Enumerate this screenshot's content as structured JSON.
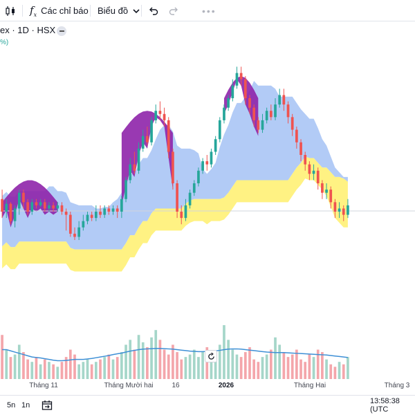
{
  "toolbar": {
    "indicators_label": "Các chỉ báo",
    "chart_type_label": "Biểu đồ"
  },
  "symbol": {
    "title": "ex · 1D · HSX",
    "change_fragment": "%)"
  },
  "time_axis": {
    "labels": [
      "Tháng 11",
      "Tháng Mười hai",
      "16",
      "2026",
      "Tháng Hai",
      "Tháng 3"
    ]
  },
  "bottom_bar": {
    "range_5n": "5n",
    "range_1n": "1n",
    "clock": "13:58:38 (UTC"
  },
  "colors": {
    "up": "#26a69a",
    "down": "#ef5350",
    "cloud_blue": "#a4c2f4",
    "cloud_yellow": "#fff176",
    "cloud_purple": "#8e24aa",
    "volume_up": "#a5d6c9",
    "volume_down": "#f4a6ab",
    "volume_ma": "#3d8fd6"
  },
  "chart_data": {
    "type": "candlestick",
    "grid": false,
    "candles": [
      [
        240,
        232,
        246,
        228
      ],
      [
        232,
        237,
        240,
        228
      ],
      [
        237,
        226,
        238,
        224
      ],
      [
        226,
        234,
        236,
        222
      ],
      [
        234,
        244,
        246,
        230
      ],
      [
        244,
        238,
        246,
        234
      ],
      [
        238,
        232,
        240,
        230
      ],
      [
        232,
        238,
        240,
        230
      ],
      [
        238,
        236,
        240,
        234
      ],
      [
        236,
        238,
        240,
        235
      ],
      [
        238,
        234,
        240,
        232
      ],
      [
        234,
        236,
        238,
        232
      ],
      [
        236,
        234,
        238,
        232
      ],
      [
        234,
        236,
        238,
        232
      ],
      [
        236,
        232,
        238,
        230
      ],
      [
        232,
        230,
        234,
        220
      ],
      [
        230,
        218,
        232,
        216
      ],
      [
        218,
        216,
        222,
        214
      ],
      [
        216,
        222,
        226,
        214
      ],
      [
        222,
        226,
        230,
        220
      ],
      [
        226,
        230,
        232,
        224
      ],
      [
        230,
        228,
        232,
        226
      ],
      [
        228,
        232,
        236,
        226
      ],
      [
        232,
        230,
        236,
        228
      ],
      [
        230,
        234,
        236,
        228
      ],
      [
        234,
        232,
        236,
        230
      ],
      [
        232,
        234,
        236,
        230
      ],
      [
        234,
        232,
        236,
        228
      ],
      [
        232,
        240,
        242,
        228
      ],
      [
        240,
        252,
        254,
        238
      ],
      [
        252,
        262,
        266,
        250
      ],
      [
        262,
        258,
        270,
        256
      ],
      [
        258,
        272,
        276,
        256
      ],
      [
        272,
        280,
        284,
        270
      ],
      [
        280,
        276,
        286,
        274
      ],
      [
        276,
        290,
        292,
        274
      ],
      [
        290,
        296,
        300,
        288
      ],
      [
        296,
        294,
        302,
        290
      ],
      [
        294,
        290,
        298,
        286
      ],
      [
        290,
        270,
        292,
        266
      ],
      [
        270,
        250,
        272,
        246
      ],
      [
        250,
        232,
        252,
        228
      ],
      [
        232,
        228,
        236,
        224
      ],
      [
        228,
        236,
        240,
        226
      ],
      [
        236,
        244,
        246,
        234
      ],
      [
        244,
        250,
        252,
        242
      ],
      [
        250,
        258,
        260,
        248
      ],
      [
        258,
        264,
        266,
        256
      ],
      [
        264,
        262,
        268,
        258
      ],
      [
        262,
        270,
        272,
        260
      ],
      [
        270,
        278,
        280,
        268
      ],
      [
        278,
        290,
        292,
        276
      ],
      [
        290,
        298,
        300,
        288
      ],
      [
        298,
        304,
        306,
        296
      ],
      [
        304,
        312,
        316,
        302
      ],
      [
        312,
        320,
        324,
        310
      ],
      [
        320,
        316,
        324,
        312
      ],
      [
        316,
        304,
        318,
        300
      ],
      [
        304,
        298,
        306,
        294
      ],
      [
        298,
        290,
        300,
        286
      ],
      [
        290,
        284,
        292,
        282
      ],
      [
        284,
        290,
        294,
        282
      ],
      [
        290,
        296,
        298,
        288
      ],
      [
        296,
        292,
        300,
        290
      ],
      [
        292,
        300,
        304,
        290
      ],
      [
        300,
        306,
        310,
        298
      ],
      [
        306,
        300,
        310,
        296
      ],
      [
        300,
        292,
        302,
        288
      ],
      [
        292,
        284,
        294,
        280
      ],
      [
        284,
        276,
        286,
        272
      ],
      [
        276,
        268,
        278,
        264
      ],
      [
        268,
        262,
        270,
        258
      ],
      [
        262,
        256,
        264,
        252
      ],
      [
        256,
        258,
        262,
        252
      ],
      [
        258,
        250,
        260,
        246
      ],
      [
        250,
        244,
        252,
        240
      ],
      [
        244,
        246,
        250,
        240
      ],
      [
        246,
        238,
        248,
        234
      ],
      [
        238,
        232,
        240,
        228
      ],
      [
        232,
        234,
        238,
        228
      ],
      [
        234,
        230,
        236,
        226
      ],
      [
        230,
        236,
        240,
        228
      ]
    ],
    "volumes": [
      18,
      12,
      9,
      10,
      14,
      11,
      8,
      7,
      9,
      6,
      8,
      7,
      6,
      5,
      7,
      9,
      12,
      10,
      6,
      7,
      8,
      6,
      7,
      8,
      9,
      10,
      8,
      9,
      11,
      14,
      16,
      12,
      18,
      15,
      13,
      17,
      20,
      16,
      12,
      10,
      14,
      11,
      8,
      9,
      10,
      12,
      9,
      11,
      13,
      10,
      9,
      14,
      22,
      16,
      12,
      10,
      9,
      11,
      13,
      8,
      7,
      9,
      10,
      12,
      17,
      14,
      11,
      9,
      10,
      12,
      8,
      7,
      10,
      9,
      12,
      11,
      8,
      6,
      5,
      7,
      6,
      9
    ],
    "volume_ma": [
      12,
      12,
      11.5,
      11,
      10.5,
      10,
      9.5,
      9,
      8.8,
      8.6,
      8.3,
      8,
      7.7,
      7.5,
      7.5,
      7.6,
      7.8,
      8,
      8,
      8,
      8.2,
      8.4,
      8.7,
      9,
      9.3,
      9.6,
      10,
      10.3,
      10.6,
      11,
      11.4,
      11.7,
      12,
      12.2,
      12.3,
      12.4,
      12.5,
      12.5,
      12.4,
      12.3,
      12.2,
      12,
      11.8,
      11.6,
      11.4,
      11.3,
      11.2,
      11.2,
      11.3,
      11.4,
      11.5,
      11.7,
      12,
      12.2,
      12.3,
      12.3,
      12.2,
      12,
      11.8,
      11.6,
      11.4,
      11.2,
      11,
      10.9,
      10.8,
      10.8,
      10.8,
      10.7,
      10.6,
      10.5,
      10.4,
      10.3,
      10.2,
      10.1,
      10,
      9.9,
      9.8,
      9.6,
      9.4,
      9.2,
      9,
      8.8
    ]
  }
}
